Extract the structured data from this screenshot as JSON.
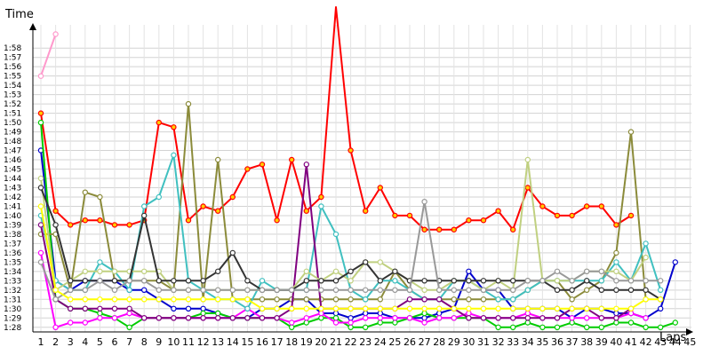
{
  "chart_data": {
    "type": "line",
    "ylabel": "Time",
    "xlabel": "Laps",
    "x_categories": [
      "1",
      "2",
      "3",
      "4",
      "5",
      "6",
      "7",
      "8",
      "9",
      "10",
      "11",
      "12",
      "13",
      "14",
      "15",
      "16",
      "17",
      "18",
      "19",
      "20",
      "21",
      "22",
      "23",
      "24",
      "25",
      "26",
      "27",
      "28",
      "29",
      "30",
      "31",
      "32",
      "33",
      "34",
      "35",
      "36",
      "37",
      "38",
      "39",
      "40",
      "41",
      "42",
      "43",
      "44",
      "45"
    ],
    "y_tick_labels": [
      "1:28",
      "1:29",
      "1:30",
      "1:31",
      "1:32",
      "1:33",
      "1:34",
      "1:35",
      "1:36",
      "1:37",
      "1:38",
      "1:39",
      "1:40",
      "1:41",
      "1:42",
      "1:43",
      "1:44",
      "1:45",
      "1:46",
      "1:47",
      "1:48",
      "1:49",
      "1:50",
      "1:51",
      "1:52",
      "1:53",
      "1:54",
      "1:55",
      "1:56",
      "1:57",
      "1:58"
    ],
    "ylim_seconds": [
      87.5,
      120.5
    ],
    "grid": true,
    "series": [
      {
        "color": "#ff0000",
        "values": [
          111,
          100.5,
          99,
          99.5,
          99.5,
          99,
          99,
          99.5,
          110,
          109.5,
          99.5,
          101,
          100.5,
          102,
          105,
          105.5,
          99.5,
          106,
          100.5,
          102,
          130,
          107,
          100.5,
          103,
          100,
          100,
          98.5,
          98.5,
          98.5,
          99.5,
          99.5,
          100.5,
          98.5,
          103,
          101,
          100,
          100,
          101,
          101,
          99,
          100
        ]
      },
      {
        "color": "#0000cc",
        "values": [
          107,
          93,
          92,
          93,
          93,
          93,
          92,
          92,
          91,
          90,
          90,
          90,
          89.5,
          89,
          89,
          90,
          90,
          91,
          91,
          89.5,
          89.5,
          89,
          89.5,
          89.5,
          89,
          89,
          89,
          89.5,
          90,
          94,
          92,
          92,
          90,
          90,
          90,
          90,
          89,
          90,
          90,
          89.5,
          89.5,
          89,
          90,
          95
        ]
      },
      {
        "color": "#00cc00",
        "values": [
          110,
          91,
          90,
          90,
          89.5,
          89,
          88,
          89,
          89,
          89,
          89,
          89.5,
          89.5,
          89,
          89,
          89,
          89,
          88,
          88.5,
          89,
          89,
          88,
          88,
          88.5,
          88.5,
          89,
          89.5,
          89,
          89,
          89,
          89,
          88,
          88,
          88.5,
          88,
          88,
          88.5,
          88,
          88,
          88.5,
          88.5,
          88,
          88,
          88.5
        ]
      },
      {
        "color": "#ff00ff",
        "values": [
          96,
          88,
          88.5,
          88.5,
          89,
          89,
          89.5,
          89,
          89,
          89,
          89,
          89,
          89,
          89,
          90,
          89,
          89,
          88.5,
          89,
          89.5,
          88.5,
          88.5,
          89,
          89,
          89,
          89,
          88.5,
          89,
          89,
          89.5,
          89,
          89,
          89,
          89.5,
          89,
          89,
          89,
          89,
          89,
          89,
          89.5,
          89
        ]
      },
      {
        "color": "#8b8b3a",
        "values": [
          98,
          98,
          92,
          102.5,
          102,
          93,
          93,
          93,
          93,
          92,
          112,
          91,
          106,
          91,
          91,
          91,
          91,
          91,
          91,
          91,
          91,
          91,
          91,
          91,
          94,
          92,
          91,
          91,
          91,
          91,
          91,
          91,
          91,
          92,
          93,
          93,
          91,
          92,
          93,
          96,
          109,
          91
        ]
      },
      {
        "color": "#40c0c0",
        "values": [
          100,
          93,
          92,
          92,
          95,
          94,
          92,
          101,
          102,
          106.5,
          93,
          92,
          91,
          91,
          90,
          93,
          92,
          92,
          92,
          101,
          98,
          92,
          91,
          93,
          93,
          92,
          91,
          91,
          93,
          93,
          92,
          91,
          91,
          92,
          93,
          93,
          93,
          93,
          93,
          95,
          93,
          97,
          92
        ]
      },
      {
        "color": "#800080",
        "values": [
          99,
          91,
          90,
          90,
          90,
          90,
          90,
          89,
          89,
          89,
          89,
          89,
          89,
          89,
          89,
          89,
          89,
          90,
          105.5,
          90,
          90,
          90,
          90,
          90,
          90,
          91,
          91,
          91,
          90,
          89,
          89,
          89,
          89,
          89,
          89,
          89,
          90,
          90,
          89,
          89,
          90
        ]
      },
      {
        "color": "#c0d080",
        "values": [
          104,
          92,
          93,
          94,
          94,
          94,
          94,
          94,
          94,
          92,
          92,
          92,
          92,
          92,
          92,
          92,
          92,
          92,
          94,
          93,
          94,
          93,
          95,
          95,
          94,
          93,
          92,
          92,
          93,
          93,
          92,
          93,
          92,
          106,
          93,
          93,
          93,
          94,
          94,
          94,
          93,
          95.5
        ]
      },
      {
        "color": "#333333",
        "values": [
          103,
          99,
          93,
          93,
          93,
          93,
          93,
          100,
          93,
          93,
          93,
          93,
          94,
          96,
          93,
          92,
          92,
          92,
          93,
          93,
          93,
          94,
          95,
          93,
          94,
          93,
          93,
          93,
          93,
          93,
          93,
          93,
          93,
          93,
          93,
          92,
          92,
          93,
          92,
          92,
          92,
          92,
          91
        ]
      },
      {
        "color": "#ff99cc",
        "values": [
          115,
          119.5
        ]
      },
      {
        "color": "#999999",
        "values": [
          95,
          91,
          92,
          92,
          93,
          92,
          93,
          93,
          92,
          92,
          92,
          92,
          92,
          92,
          92,
          92,
          92,
          92,
          92,
          92,
          92,
          92,
          92,
          92,
          92,
          92,
          101.5,
          92,
          92,
          92,
          92,
          92,
          92,
          93,
          93,
          94,
          93,
          94,
          94,
          93,
          93,
          93,
          93
        ]
      },
      {
        "color": "#ffff00",
        "values": [
          101,
          92,
          91,
          91,
          91,
          91,
          91,
          91,
          91,
          91,
          91,
          91,
          91,
          91,
          91,
          90,
          90,
          90,
          90,
          90,
          90,
          90,
          90,
          90,
          90,
          90,
          90,
          90,
          90,
          90,
          90,
          90,
          90,
          90,
          90,
          90,
          90,
          90,
          90,
          90,
          90,
          91,
          91
        ]
      }
    ]
  }
}
